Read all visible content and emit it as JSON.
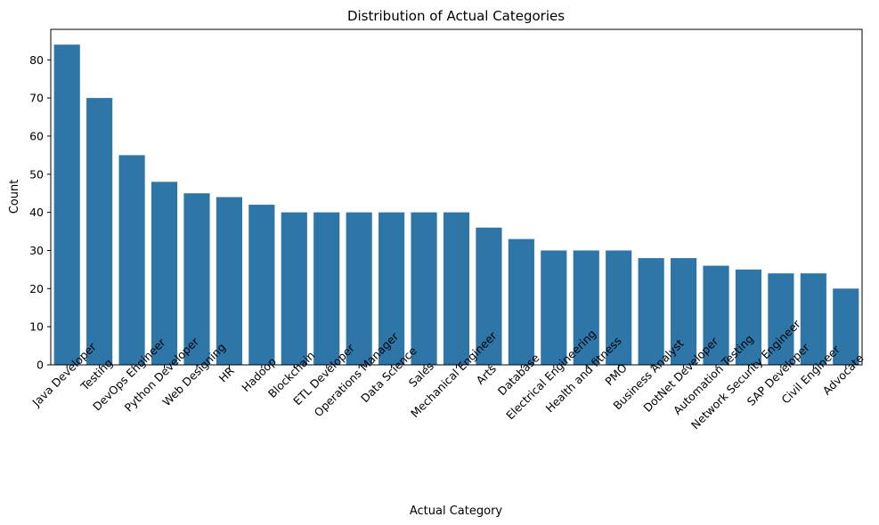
{
  "chart_data": {
    "type": "bar",
    "title": "Distribution of Actual Categories",
    "xlabel": "Actual Category",
    "ylabel": "Count",
    "ylim": [
      0,
      88
    ],
    "yticks": [
      0,
      10,
      20,
      30,
      40,
      50,
      60,
      70,
      80
    ],
    "grid": false,
    "bar_color": "#2e75a8",
    "categories": [
      "Java Developer",
      "Testing",
      "DevOps Engineer",
      "Python Developer",
      "Web Designing",
      "HR",
      "Hadoop",
      "Blockchain",
      "ETL Developer",
      "Operations Manager",
      "Data Science",
      "Sales",
      "Mechanical Engineer",
      "Arts",
      "Database",
      "Electrical Engineering",
      "Health and fitness",
      "PMO",
      "Business Analyst",
      "DotNet Developer",
      "Automation Testing",
      "Network Security Engineer",
      "SAP Developer",
      "Civil Engineer",
      "Advocate"
    ],
    "values": [
      84,
      70,
      55,
      48,
      45,
      44,
      42,
      40,
      40,
      40,
      40,
      40,
      40,
      36,
      33,
      30,
      30,
      30,
      28,
      28,
      26,
      25,
      24,
      24,
      20
    ]
  }
}
